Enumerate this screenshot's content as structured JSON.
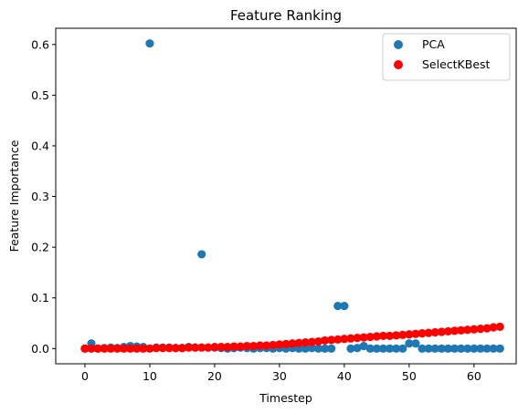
{
  "chart_data": {
    "type": "scatter",
    "title": "Feature Ranking",
    "xlabel": "Timestep",
    "ylabel": "Feature Importance",
    "xlim": [
      -4.5,
      66.5
    ],
    "ylim": [
      -0.03,
      0.632
    ],
    "xticks": [
      0,
      10,
      20,
      30,
      40,
      50,
      60
    ],
    "yticks": [
      0.0,
      0.1,
      0.2,
      0.3,
      0.4,
      0.5,
      0.6
    ],
    "xtick_labels": [
      "0",
      "10",
      "20",
      "30",
      "40",
      "50",
      "60"
    ],
    "ytick_labels": [
      "0.0",
      "0.1",
      "0.2",
      "0.3",
      "0.4",
      "0.5",
      "0.6"
    ],
    "grid": false,
    "legend_position": "top-right",
    "series": [
      {
        "name": "PCA",
        "color": "#1f77b4",
        "x": [
          0,
          1,
          2,
          3,
          4,
          5,
          6,
          7,
          8,
          9,
          10,
          11,
          12,
          13,
          14,
          15,
          16,
          17,
          18,
          19,
          20,
          21,
          22,
          23,
          24,
          25,
          26,
          27,
          28,
          29,
          30,
          31,
          32,
          33,
          34,
          35,
          36,
          37,
          38,
          39,
          40,
          41,
          42,
          43,
          44,
          45,
          46,
          47,
          48,
          49,
          50,
          51,
          52,
          53,
          54,
          55,
          56,
          57,
          58,
          59,
          60,
          61,
          62,
          63,
          64
        ],
        "y": [
          0.0,
          0.01,
          0.0,
          0.001,
          0.002,
          0.001,
          0.003,
          0.005,
          0.004,
          0.003,
          0.602,
          0.002,
          0.002,
          0.002,
          0.001,
          0.001,
          0.003,
          0.002,
          0.186,
          0.002,
          0.002,
          0.001,
          0.0,
          0.001,
          0.002,
          0.001,
          0.0,
          0.001,
          0.001,
          0.0,
          0.001,
          0.0,
          0.001,
          0.0,
          0.0,
          0.001,
          0.0,
          0.0,
          0.0,
          0.084,
          0.084,
          0.0,
          0.001,
          0.005,
          0.0,
          0.0,
          0.0,
          0.0,
          0.0,
          0.0,
          0.01,
          0.01,
          0.0,
          0.0,
          0.0,
          0.0,
          0.0,
          0.0,
          0.0,
          0.0,
          0.0,
          0.0,
          0.0,
          0.0,
          0.0
        ]
      },
      {
        "name": "SelectKBest",
        "color": "#ff0000",
        "x": [
          0,
          1,
          2,
          3,
          4,
          5,
          6,
          7,
          8,
          9,
          10,
          11,
          12,
          13,
          14,
          15,
          16,
          17,
          18,
          19,
          20,
          21,
          22,
          23,
          24,
          25,
          26,
          27,
          28,
          29,
          30,
          31,
          32,
          33,
          34,
          35,
          36,
          37,
          38,
          39,
          40,
          41,
          42,
          43,
          44,
          45,
          46,
          47,
          48,
          49,
          50,
          51,
          52,
          53,
          54,
          55,
          56,
          57,
          58,
          59,
          60,
          61,
          62,
          63,
          64
        ],
        "y": [
          0.0,
          0.0,
          0.0,
          0.0,
          0.0,
          0.0,
          0.0,
          0.0,
          0.0,
          0.0,
          0.0,
          0.001,
          0.001,
          0.001,
          0.001,
          0.001,
          0.002,
          0.002,
          0.002,
          0.002,
          0.003,
          0.003,
          0.003,
          0.004,
          0.004,
          0.005,
          0.005,
          0.006,
          0.006,
          0.007,
          0.008,
          0.009,
          0.01,
          0.011,
          0.012,
          0.013,
          0.014,
          0.016,
          0.017,
          0.018,
          0.019,
          0.02,
          0.021,
          0.022,
          0.023,
          0.024,
          0.025,
          0.025,
          0.026,
          0.027,
          0.028,
          0.029,
          0.03,
          0.031,
          0.032,
          0.033,
          0.034,
          0.035,
          0.036,
          0.037,
          0.038,
          0.039,
          0.04,
          0.042,
          0.043
        ]
      }
    ]
  }
}
